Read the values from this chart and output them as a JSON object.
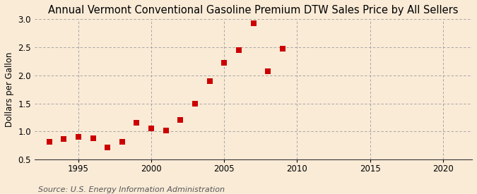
{
  "title": "Annual Vermont Conventional Gasoline Premium DTW Sales Price by All Sellers",
  "ylabel": "Dollars per Gallon",
  "source": "Source: U.S. Energy Information Administration",
  "background_color": "#faebd7",
  "years": [
    1993,
    1994,
    1995,
    1996,
    1997,
    1998,
    1999,
    2000,
    2001,
    2002,
    2003,
    2004,
    2005,
    2006,
    2007,
    2008,
    2009
  ],
  "values": [
    0.81,
    0.86,
    0.91,
    0.88,
    0.72,
    0.81,
    1.16,
    1.06,
    1.02,
    1.21,
    1.5,
    1.9,
    2.22,
    2.45,
    2.93,
    2.07,
    2.48
  ],
  "marker_color": "#cc0000",
  "marker_size": 28,
  "xlim": [
    1992,
    2022
  ],
  "ylim": [
    0.5,
    3.0
  ],
  "yticks": [
    0.5,
    1.0,
    1.5,
    2.0,
    2.5,
    3.0
  ],
  "xticks": [
    1995,
    2000,
    2005,
    2010,
    2015,
    2020
  ],
  "title_fontsize": 10.5,
  "label_fontsize": 8.5,
  "tick_fontsize": 8.5,
  "source_fontsize": 8
}
